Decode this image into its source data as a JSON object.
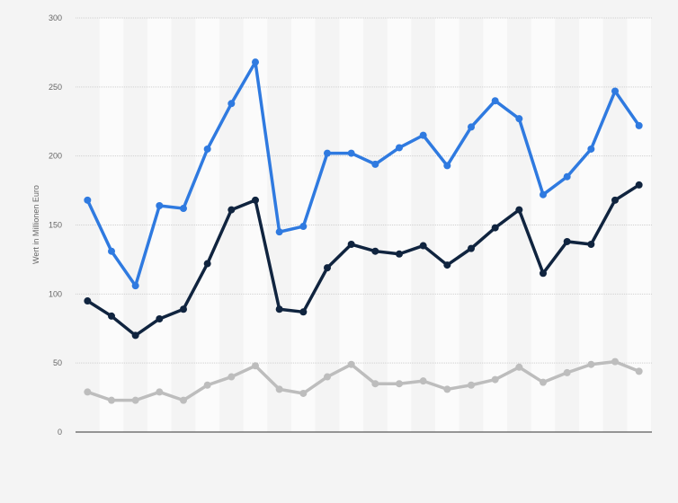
{
  "chart_data": {
    "type": "line",
    "title": "",
    "xlabel": "",
    "ylabel": "Wert in Millionen Euro",
    "ylim": [
      0,
      300
    ],
    "yticks": [
      "0",
      "50",
      "100",
      "150",
      "200",
      "250",
      "300"
    ],
    "grid": true,
    "legend": "none",
    "series": [
      {
        "color": "#2f7ae0",
        "values": [
          168,
          131,
          106,
          164,
          162,
          205,
          238,
          268,
          145,
          149,
          202,
          202,
          194,
          206,
          215,
          193,
          221,
          240,
          227,
          172,
          185,
          205,
          247,
          222
        ]
      },
      {
        "color": "#10243f",
        "values": [
          95,
          84,
          70,
          82,
          89,
          122,
          161,
          168,
          89,
          87,
          119,
          136,
          131,
          129,
          135,
          121,
          133,
          148,
          161,
          115,
          138,
          136,
          168,
          179
        ]
      },
      {
        "color": "#bdbdbd",
        "values": [
          29,
          23,
          23,
          29,
          23,
          34,
          40,
          48,
          31,
          28,
          40,
          49,
          35,
          35,
          37,
          31,
          34,
          38,
          47,
          36,
          43,
          49,
          51,
          44
        ]
      }
    ]
  }
}
